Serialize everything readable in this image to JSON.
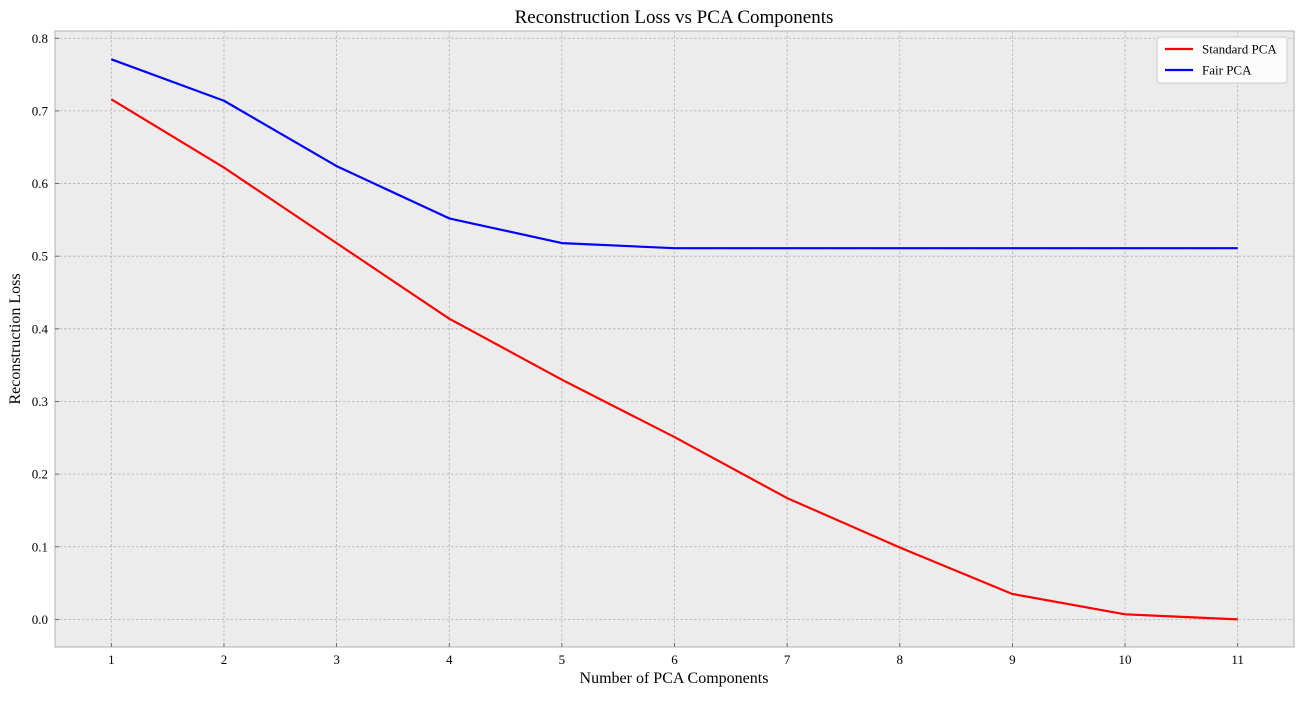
{
  "chart_data": {
    "type": "line",
    "title": "Reconstruction Loss vs PCA Components",
    "xlabel": "Number of PCA Components",
    "ylabel": "Reconstruction Loss",
    "x": [
      1,
      2,
      3,
      4,
      5,
      6,
      7,
      8,
      9,
      10,
      11
    ],
    "xlim": [
      0.5,
      11.5
    ],
    "ylim": [
      -0.038,
      0.81
    ],
    "xticks": [
      1,
      2,
      3,
      4,
      5,
      6,
      7,
      8,
      9,
      10,
      11
    ],
    "yticks": [
      0.0,
      0.1,
      0.2,
      0.3,
      0.4,
      0.5,
      0.6,
      0.7,
      0.8
    ],
    "grid": true,
    "legend_position": "top-right",
    "series": [
      {
        "name": "Standard PCA",
        "color": "#ff0000",
        "values": [
          0.716,
          0.622,
          0.518,
          0.414,
          0.33,
          0.251,
          0.167,
          0.099,
          0.035,
          0.007,
          0.0
        ]
      },
      {
        "name": "Fair PCA",
        "color": "#0000ff",
        "values": [
          0.771,
          0.714,
          0.624,
          0.552,
          0.518,
          0.511,
          0.511,
          0.511,
          0.511,
          0.511,
          0.511
        ]
      }
    ]
  }
}
